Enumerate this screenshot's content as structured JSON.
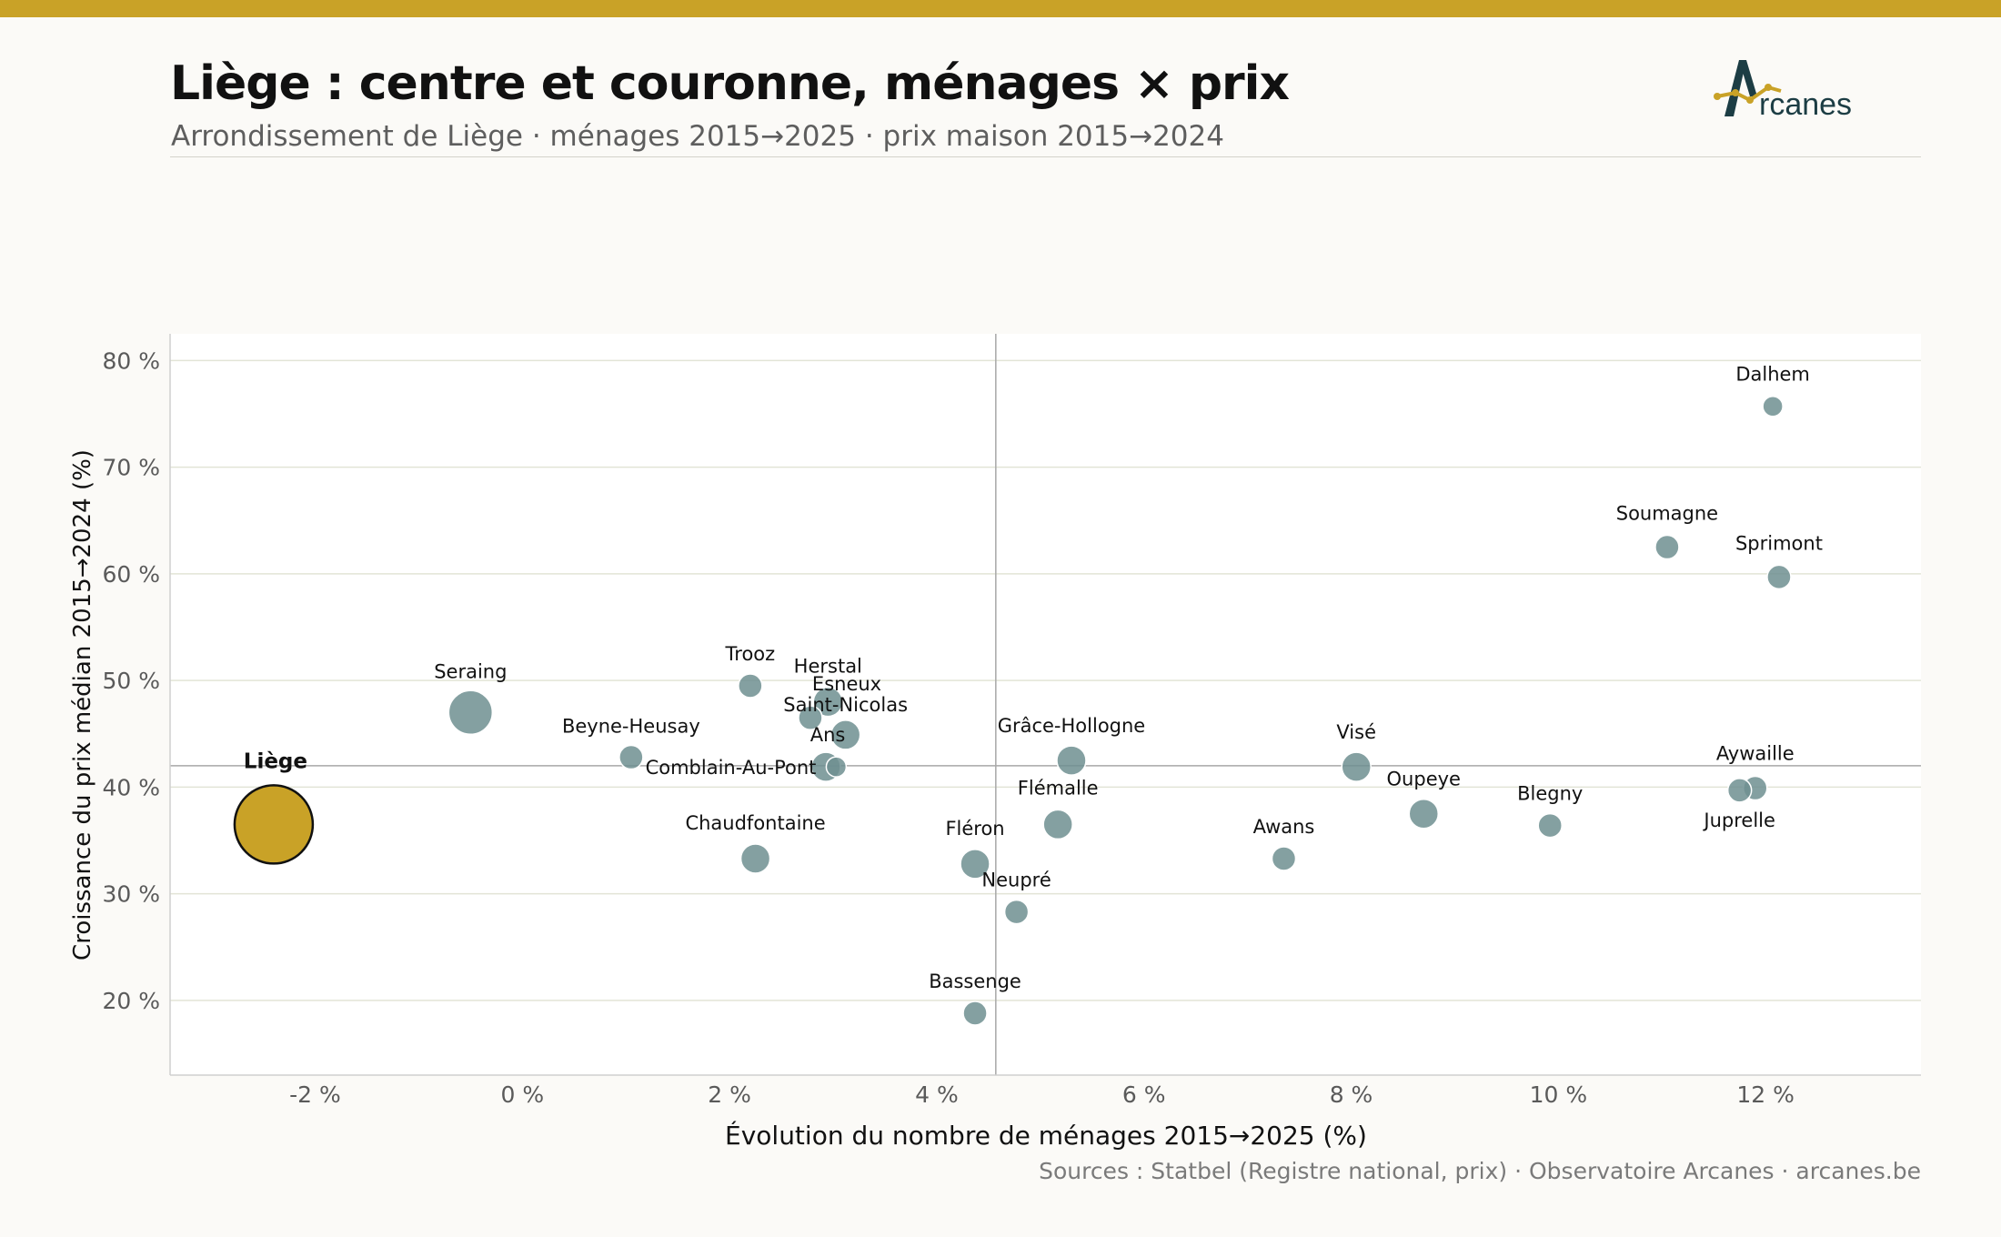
{
  "header": {
    "title": "Liège : centre et couronne, ménages × prix",
    "subtitle": "Arrondissement de Liège · ménages 2015→2025 · prix maison 2015→2024",
    "logo_text": "rcanes",
    "logo_letter": "A"
  },
  "footer": {
    "source": "Sources : Statbel (Registre national, prix) · Observatoire Arcanes · arcanes.be"
  },
  "colors": {
    "accent": "#c9a227",
    "bubble": "#6e8f90",
    "highlight": "#c9a227",
    "logo_dark": "#1c3d44"
  },
  "chart_data": {
    "type": "scatter",
    "xlabel": "Évolution du nombre de ménages 2015→2025 (%)",
    "ylabel": "Croissance du prix médian 2015→2024 (%)",
    "xlim": [
      -3.4,
      13.5
    ],
    "ylim": [
      13,
      82.5
    ],
    "xticks": [
      -2,
      0,
      2,
      4,
      6,
      8,
      10,
      12
    ],
    "yticks": [
      20,
      30,
      40,
      50,
      60,
      70,
      80
    ],
    "xtick_labels": [
      "-2 %",
      "0 %",
      "2 %",
      "4 %",
      "6 %",
      "8 %",
      "10 %",
      "12 %"
    ],
    "ytick_labels": [
      "20 %",
      "30 %",
      "40 %",
      "50 %",
      "60 %",
      "70 %",
      "80 %"
    ],
    "reference_lines": {
      "x": 4.57,
      "y": 42.0
    },
    "grid": "horizontal",
    "points": [
      {
        "name": "Liège",
        "x": -2.4,
        "y": 36.5,
        "size": "large",
        "highlight": true
      },
      {
        "name": "Seraing",
        "x": -0.5,
        "y": 47.0,
        "size": "medium-large"
      },
      {
        "name": "Beyne-Heusay",
        "x": 1.05,
        "y": 42.8,
        "size": "small"
      },
      {
        "name": "Trooz",
        "x": 2.2,
        "y": 49.5,
        "size": "small"
      },
      {
        "name": "Herstal",
        "x": 2.95,
        "y": 48.0,
        "size": "medium"
      },
      {
        "name": "Esneux",
        "x": 2.78,
        "y": 46.5,
        "size": "small"
      },
      {
        "name": "Saint-Nicolas",
        "x": 3.12,
        "y": 44.9,
        "size": "medium"
      },
      {
        "name": "Ans",
        "x": 2.93,
        "y": 41.9,
        "size": "medium"
      },
      {
        "name": "Comblain-Au-Pont",
        "x": 3.03,
        "y": 41.9,
        "size": "tiny"
      },
      {
        "name": "Chaudfontaine",
        "x": 2.25,
        "y": 33.3,
        "size": "medium"
      },
      {
        "name": "Fléron",
        "x": 4.37,
        "y": 32.8,
        "size": "medium"
      },
      {
        "name": "Neupré",
        "x": 4.77,
        "y": 28.3,
        "size": "small"
      },
      {
        "name": "Bassenge",
        "x": 4.37,
        "y": 18.8,
        "size": "small"
      },
      {
        "name": "Grâce-Hollogne",
        "x": 5.3,
        "y": 42.5,
        "size": "medium"
      },
      {
        "name": "Flémalle",
        "x": 5.17,
        "y": 36.5,
        "size": "medium"
      },
      {
        "name": "Awans",
        "x": 7.35,
        "y": 33.3,
        "size": "small"
      },
      {
        "name": "Visé",
        "x": 8.05,
        "y": 41.9,
        "size": "medium"
      },
      {
        "name": "Oupeye",
        "x": 8.7,
        "y": 37.5,
        "size": "medium"
      },
      {
        "name": "Blegny",
        "x": 9.92,
        "y": 36.4,
        "size": "small"
      },
      {
        "name": "Aywaille",
        "x": 11.9,
        "y": 39.9,
        "size": "small"
      },
      {
        "name": "Juprelle",
        "x": 11.75,
        "y": 39.7,
        "size": "small"
      },
      {
        "name": "Soumagne",
        "x": 11.05,
        "y": 62.5,
        "size": "small"
      },
      {
        "name": "Sprimont",
        "x": 12.13,
        "y": 59.7,
        "size": "small"
      },
      {
        "name": "Dalhem",
        "x": 12.07,
        "y": 75.7,
        "size": "tiny"
      }
    ]
  }
}
